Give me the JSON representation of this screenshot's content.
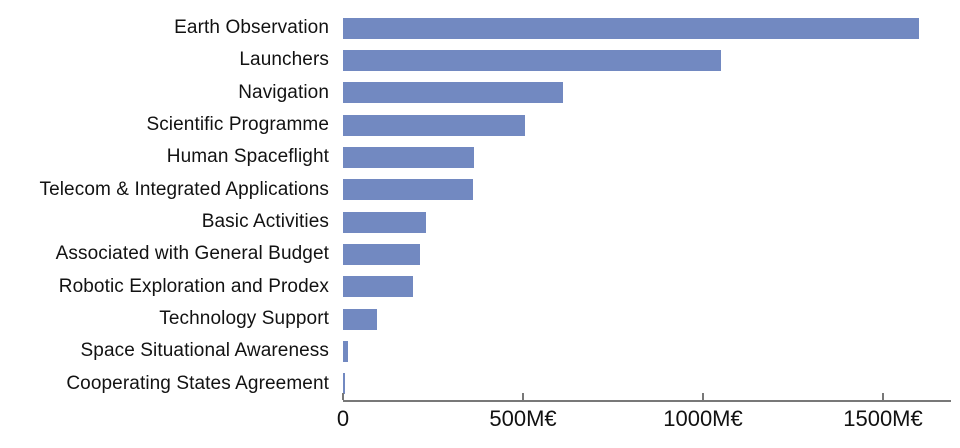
{
  "chart_data": {
    "type": "bar",
    "orientation": "horizontal",
    "title": "",
    "xlabel": "",
    "ylabel": "",
    "unit": "M€",
    "categories": [
      "Earth Observation",
      "Launchers",
      "Navigation",
      "Scientific Programme",
      "Human Spaceflight",
      "Telecom & Integrated Applications",
      "Basic Activities",
      "Associated with General Budget",
      "Robotic Exploration and Prodex",
      "Technology Support",
      "Space Situational Awareness",
      "Cooperating States Agreement"
    ],
    "values": [
      1600,
      1050,
      610,
      505,
      365,
      360,
      230,
      215,
      195,
      95,
      15,
      4
    ],
    "xlim": [
      0,
      1710
    ],
    "x_ticks": [
      {
        "value": 0,
        "label": "0"
      },
      {
        "value": 500,
        "label": "500M€"
      },
      {
        "value": 1000,
        "label": "1000M€"
      },
      {
        "value": 1500,
        "label": "1500M€"
      }
    ],
    "grid": false,
    "legend": false,
    "bar_color": "#7289c1",
    "axis_color": "#787878",
    "text_color": "#111111",
    "background": "#ffffff"
  }
}
